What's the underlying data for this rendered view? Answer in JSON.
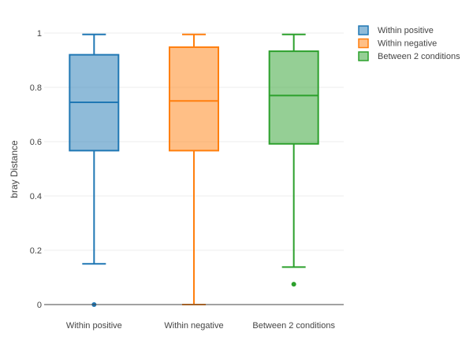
{
  "chart_data": {
    "type": "box",
    "title": "",
    "xlabel": "",
    "ylabel": "bray Distance",
    "ylim": [
      0,
      1
    ],
    "yticks": [
      0,
      0.2,
      0.4,
      0.6,
      0.8,
      1
    ],
    "ytick_labels": [
      "0",
      "0.2",
      "0.4",
      "0.6",
      "0.8",
      "1"
    ],
    "grid": true,
    "legend_position": "top-right",
    "categories": [
      "Within positive",
      "Within negative",
      "Between 2 conditions"
    ],
    "series": [
      {
        "name": "Within positive",
        "color": "#1f77b4",
        "min": 0.15,
        "q1": 0.567,
        "median": 0.745,
        "q3": 0.92,
        "max": 0.995,
        "outliers": [
          0.0
        ]
      },
      {
        "name": "Within negative",
        "color": "#ff7f0e",
        "min": 0.0,
        "q1": 0.567,
        "median": 0.75,
        "q3": 0.948,
        "max": 0.995,
        "outliers": []
      },
      {
        "name": "Between 2 conditions",
        "color": "#2ca02c",
        "min": 0.138,
        "q1": 0.592,
        "median": 0.77,
        "q3": 0.933,
        "max": 0.995,
        "outliers": [
          0.075
        ]
      }
    ]
  }
}
